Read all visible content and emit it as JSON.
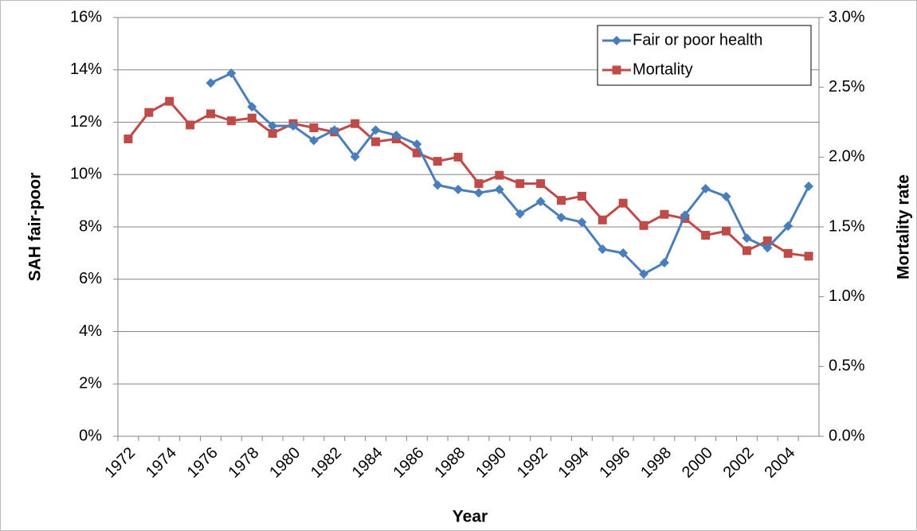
{
  "chart_data": {
    "type": "line",
    "x_label": "Year",
    "y_label": "SAH fair-poor",
    "y2_label": "Mortality rate",
    "categories": [
      "1972",
      null,
      "1974",
      null,
      "1976",
      null,
      "1978",
      null,
      "1980",
      null,
      "1982",
      null,
      "1984",
      null,
      "1986",
      null,
      "1988",
      null,
      "1990",
      null,
      "1992",
      null,
      "1994",
      null,
      "1996",
      null,
      "1998",
      null,
      "2000",
      null,
      "2002",
      null,
      "2004",
      null
    ],
    "series": [
      {
        "name": "Fair or poor health",
        "color": "#4a7ebb",
        "marker": "diamond",
        "axis": "y",
        "values": [
          null,
          null,
          null,
          null,
          13.5,
          13.87,
          12.59,
          11.86,
          11.86,
          11.3,
          11.7,
          10.68,
          11.7,
          11.5,
          11.16,
          9.6,
          9.43,
          9.3,
          9.43,
          8.5,
          8.97,
          8.36,
          8.18,
          7.15,
          7.0,
          6.2,
          6.63,
          8.45,
          9.46,
          9.16,
          7.57,
          7.2,
          8.03,
          9.55
        ]
      },
      {
        "name": "Mortality",
        "color": "#be4b48",
        "marker": "square",
        "axis": "y2",
        "values": [
          2.13,
          2.32,
          2.4,
          2.23,
          2.31,
          2.26,
          2.28,
          2.17,
          2.24,
          2.21,
          2.18,
          2.24,
          2.11,
          2.13,
          2.03,
          1.97,
          2.0,
          1.81,
          1.87,
          1.81,
          1.81,
          1.69,
          1.72,
          1.55,
          1.67,
          1.51,
          1.59,
          1.56,
          1.44,
          1.47,
          1.33,
          1.4,
          1.31,
          1.29
        ]
      }
    ],
    "ylim": [
      0,
      16
    ],
    "yticks": [
      {
        "value": 0,
        "label": "0%"
      },
      {
        "value": 2,
        "label": "2%"
      },
      {
        "value": 4,
        "label": "4%"
      },
      {
        "value": 6,
        "label": "6%"
      },
      {
        "value": 8,
        "label": "8%"
      },
      {
        "value": 10,
        "label": "10%"
      },
      {
        "value": 12,
        "label": "12%"
      },
      {
        "value": 14,
        "label": "14%"
      },
      {
        "value": 16,
        "label": "16%"
      }
    ],
    "y2lim": [
      0,
      3
    ],
    "y2ticks": [
      {
        "value": 0,
        "label": "0.0%"
      },
      {
        "value": 0.5,
        "label": "0.5%"
      },
      {
        "value": 1,
        "label": "1.0%"
      },
      {
        "value": 1.5,
        "label": "1.5%"
      },
      {
        "value": 2,
        "label": "2.0%"
      },
      {
        "value": 2.5,
        "label": "2.5%"
      },
      {
        "value": 3,
        "label": "3.0%"
      }
    ],
    "grid": true,
    "legend": "top-right"
  }
}
